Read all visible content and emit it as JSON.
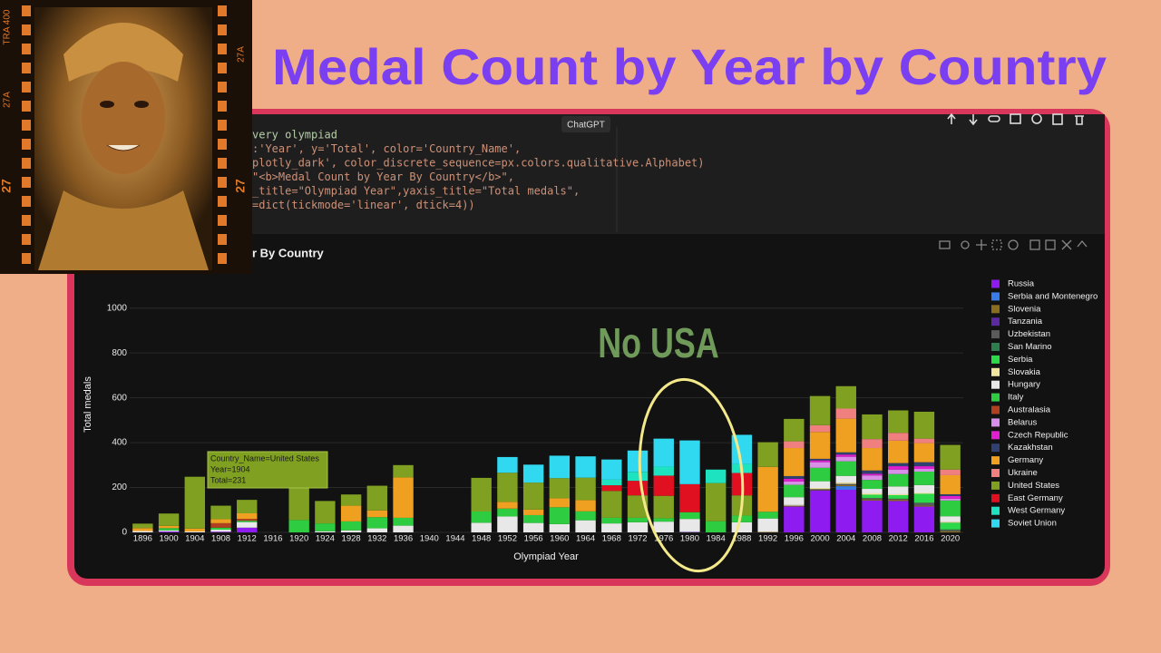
{
  "header": {
    "title": "Medal Count by Year by Country"
  },
  "film_strip": {
    "labels": [
      "TRA 400",
      "27A",
      "27",
      "27A",
      "27"
    ]
  },
  "editor": {
    "tag": "ChatGPT",
    "lines": [
      "very olympiad",
      ":'Year', y='Total', color='Country_Name',",
      "plotly_dark', color_discrete_sequence=px.colors.qualitative.Alphabet)",
      "\"<b>Medal Count by Year By Country</b>\",",
      "_title=\"Olympiad Year\",yaxis_title=\"Total medals\",",
      "=dict(tickmode='linear', dtick=4))"
    ]
  },
  "annotation": {
    "text": "No USA"
  },
  "tooltip": {
    "lines": [
      "Country_Name=United States",
      "Year=1904",
      "Total=231"
    ]
  },
  "chart_data": {
    "type": "bar",
    "stacked": true,
    "title": "r By Country",
    "x_label": "Olympiad Year",
    "y_label": "Total medals",
    "categories": [
      "1896",
      "1900",
      "1904",
      "1908",
      "1912",
      "1916",
      "1920",
      "1924",
      "1928",
      "1932",
      "1936",
      "1940",
      "1944",
      "1948",
      "1952",
      "1956",
      "1960",
      "1964",
      "1968",
      "1972",
      "1976",
      "1980",
      "1984",
      "1988",
      "1992",
      "1996",
      "2000",
      "2004",
      "2008",
      "2012",
      "2016",
      "2020"
    ],
    "ylim": [
      0,
      1100
    ],
    "yticks": [
      0,
      200,
      400,
      600,
      800,
      1000
    ],
    "grid": true,
    "series": [
      {
        "name": "Russia",
        "color": "#8e1cf0",
        "values": [
          null,
          4,
          null,
          3,
          21,
          null,
          null,
          null,
          null,
          null,
          null,
          null,
          null,
          null,
          null,
          null,
          null,
          null,
          null,
          null,
          null,
          null,
          null,
          null,
          null,
          115,
          187,
          190,
          142,
          140,
          115,
          null
        ]
      },
      {
        "name": "Serbia and Montenegro",
        "color": "#3a7bea",
        "values": [
          null,
          null,
          null,
          null,
          null,
          null,
          null,
          null,
          null,
          null,
          null,
          null,
          null,
          null,
          null,
          null,
          null,
          null,
          null,
          null,
          null,
          null,
          null,
          null,
          null,
          null,
          null,
          16,
          null,
          null,
          null,
          null
        ]
      },
      {
        "name": "Slovenia",
        "color": "#8a6d1f",
        "values": [
          null,
          null,
          null,
          null,
          null,
          null,
          null,
          null,
          null,
          null,
          null,
          null,
          null,
          null,
          null,
          null,
          null,
          null,
          null,
          null,
          null,
          null,
          null,
          null,
          2,
          2,
          2,
          5,
          5,
          6,
          4,
          5
        ]
      },
      {
        "name": "Tanzania",
        "color": "#5b2aa0",
        "values": [
          null,
          null,
          null,
          null,
          null,
          null,
          null,
          null,
          null,
          null,
          null,
          null,
          null,
          null,
          null,
          null,
          null,
          null,
          null,
          null,
          null,
          2,
          null,
          null,
          null,
          null,
          null,
          null,
          null,
          null,
          null,
          null
        ]
      },
      {
        "name": "Uzbekistan",
        "color": "#5a5a5a",
        "values": [
          null,
          null,
          null,
          null,
          null,
          null,
          null,
          null,
          null,
          null,
          null,
          null,
          null,
          null,
          null,
          null,
          null,
          null,
          null,
          null,
          null,
          null,
          null,
          null,
          null,
          2,
          4,
          5,
          6,
          4,
          13,
          5
        ]
      },
      {
        "name": "San Marino",
        "color": "#2e7d4f",
        "values": [
          null,
          null,
          null,
          null,
          null,
          null,
          null,
          null,
          null,
          null,
          null,
          null,
          null,
          null,
          null,
          null,
          null,
          null,
          null,
          null,
          null,
          null,
          null,
          null,
          null,
          null,
          null,
          null,
          null,
          null,
          null,
          3
        ]
      },
      {
        "name": "Serbia",
        "color": "#2bd94a",
        "values": [
          null,
          null,
          null,
          null,
          null,
          null,
          null,
          null,
          null,
          null,
          null,
          null,
          null,
          null,
          null,
          null,
          null,
          null,
          null,
          null,
          null,
          null,
          null,
          null,
          null,
          null,
          null,
          null,
          15,
          16,
          40,
          30
        ]
      },
      {
        "name": "Slovakia",
        "color": "#f0e6a0",
        "values": [
          null,
          null,
          null,
          null,
          null,
          null,
          null,
          null,
          null,
          null,
          null,
          null,
          null,
          null,
          null,
          null,
          null,
          null,
          null,
          null,
          null,
          null,
          null,
          null,
          null,
          3,
          5,
          6,
          6,
          4,
          4,
          4
        ]
      },
      {
        "name": "Hungary",
        "color": "#e8e8e8",
        "values": [
          6,
          5,
          4,
          9,
          25,
          null,
          null,
          5,
          9,
          18,
          30,
          null,
          null,
          43,
          71,
          42,
          37,
          54,
          40,
          45,
          48,
          58,
          null,
          45,
          60,
          35,
          30,
          30,
          20,
          35,
          35,
          25
        ]
      },
      {
        "name": "Italy",
        "color": "#2ecc40",
        "values": [
          null,
          10,
          null,
          9,
          6,
          null,
          55,
          35,
          40,
          50,
          35,
          null,
          null,
          50,
          35,
          35,
          75,
          40,
          25,
          20,
          15,
          30,
          50,
          30,
          30,
          55,
          60,
          65,
          40,
          55,
          60,
          70
        ]
      },
      {
        "name": "Australasia",
        "color": "#b04020",
        "values": [
          null,
          null,
          null,
          20,
          8,
          null,
          null,
          null,
          null,
          null,
          null,
          null,
          null,
          null,
          null,
          null,
          null,
          null,
          null,
          null,
          null,
          null,
          null,
          null,
          null,
          null,
          null,
          null,
          null,
          null,
          null,
          null
        ]
      },
      {
        "name": "Belarus",
        "color": "#d88fe8",
        "values": [
          null,
          null,
          null,
          null,
          null,
          null,
          null,
          null,
          null,
          null,
          null,
          null,
          null,
          null,
          null,
          null,
          null,
          null,
          null,
          null,
          null,
          null,
          null,
          null,
          null,
          15,
          25,
          20,
          20,
          20,
          12,
          8
        ]
      },
      {
        "name": "Czech Republic",
        "color": "#e020d0",
        "values": [
          null,
          null,
          null,
          null,
          null,
          null,
          null,
          null,
          null,
          null,
          null,
          null,
          null,
          null,
          null,
          null,
          null,
          null,
          null,
          null,
          null,
          null,
          null,
          null,
          null,
          12,
          8,
          10,
          7,
          15,
          12,
          12
        ]
      },
      {
        "name": "Kazakhstan",
        "color": "#304070",
        "values": [
          null,
          null,
          null,
          null,
          null,
          null,
          null,
          null,
          null,
          null,
          null,
          null,
          null,
          null,
          null,
          null,
          null,
          null,
          null,
          null,
          null,
          null,
          null,
          null,
          null,
          12,
          7,
          10,
          15,
          14,
          18,
          8
        ]
      },
      {
        "name": "Germany",
        "color": "#f0a020",
        "values": [
          13,
          10,
          13,
          18,
          25,
          null,
          null,
          null,
          70,
          30,
          180,
          null,
          null,
          null,
          30,
          25,
          40,
          50,
          null,
          null,
          null,
          null,
          null,
          null,
          200,
          125,
          120,
          150,
          100,
          100,
          85,
          85
        ]
      },
      {
        "name": "Ukraine",
        "color": "#f08080",
        "values": [
          null,
          null,
          null,
          null,
          null,
          null,
          null,
          null,
          null,
          null,
          null,
          null,
          null,
          null,
          null,
          null,
          null,
          null,
          null,
          null,
          null,
          null,
          null,
          null,
          null,
          30,
          30,
          45,
          40,
          35,
          20,
          25
        ]
      },
      {
        "name": "United States",
        "color": "#7fa020",
        "values": [
          20,
          55,
          231,
          60,
          60,
          null,
          190,
          100,
          50,
          110,
          55,
          null,
          null,
          150,
          130,
          120,
          90,
          100,
          120,
          100,
          100,
          null,
          170,
          90,
          110,
          100,
          130,
          100,
          110,
          100,
          120,
          110
        ]
      },
      {
        "name": "East Germany",
        "color": "#e01020",
        "values": [
          null,
          null,
          null,
          null,
          null,
          null,
          null,
          null,
          null,
          null,
          null,
          null,
          null,
          null,
          null,
          null,
          null,
          null,
          25,
          65,
          90,
          125,
          null,
          100,
          null,
          null,
          null,
          null,
          null,
          null,
          null,
          null
        ]
      },
      {
        "name": "West Germany",
        "color": "#1ee3c0",
        "values": [
          null,
          null,
          null,
          null,
          null,
          null,
          null,
          null,
          null,
          null,
          null,
          null,
          null,
          null,
          null,
          null,
          null,
          null,
          25,
          40,
          40,
          null,
          60,
          40,
          null,
          null,
          null,
          null,
          null,
          null,
          null,
          null
        ]
      },
      {
        "name": "Soviet Union",
        "color": "#30d8f0",
        "values": [
          null,
          null,
          null,
          null,
          null,
          null,
          null,
          null,
          null,
          null,
          null,
          null,
          null,
          null,
          70,
          80,
          100,
          95,
          90,
          95,
          125,
          195,
          null,
          130,
          null,
          null,
          null,
          null,
          null,
          null,
          null,
          null
        ]
      }
    ]
  }
}
